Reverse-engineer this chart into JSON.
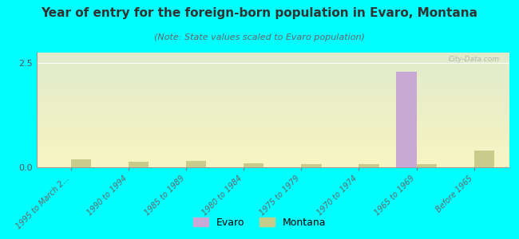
{
  "title": "Year of entry for the foreign-born population in Evaro, Montana",
  "subtitle": "(Note: State values scaled to Evaro population)",
  "categories": [
    "1995 to March 2...",
    "1990 to 1994",
    "1985 to 1989",
    "1980 to 1984",
    "1975 to 1979",
    "1970 to 1974",
    "1965 to 1969",
    "Before 1965"
  ],
  "evaro_values": [
    0,
    0,
    0,
    0,
    0,
    0,
    2.3,
    0
  ],
  "montana_values": [
    0.2,
    0.13,
    0.15,
    0.1,
    0.08,
    0.08,
    0.07,
    0.4
  ],
  "evaro_color": "#c9a8d4",
  "montana_color": "#c8cc8a",
  "background_color": "#00ffff",
  "ylim": [
    0,
    2.75
  ],
  "yticks": [
    0,
    2.5
  ],
  "watermark": "City-Data.com",
  "bar_width": 0.35,
  "title_fontsize": 11,
  "subtitle_fontsize": 8
}
